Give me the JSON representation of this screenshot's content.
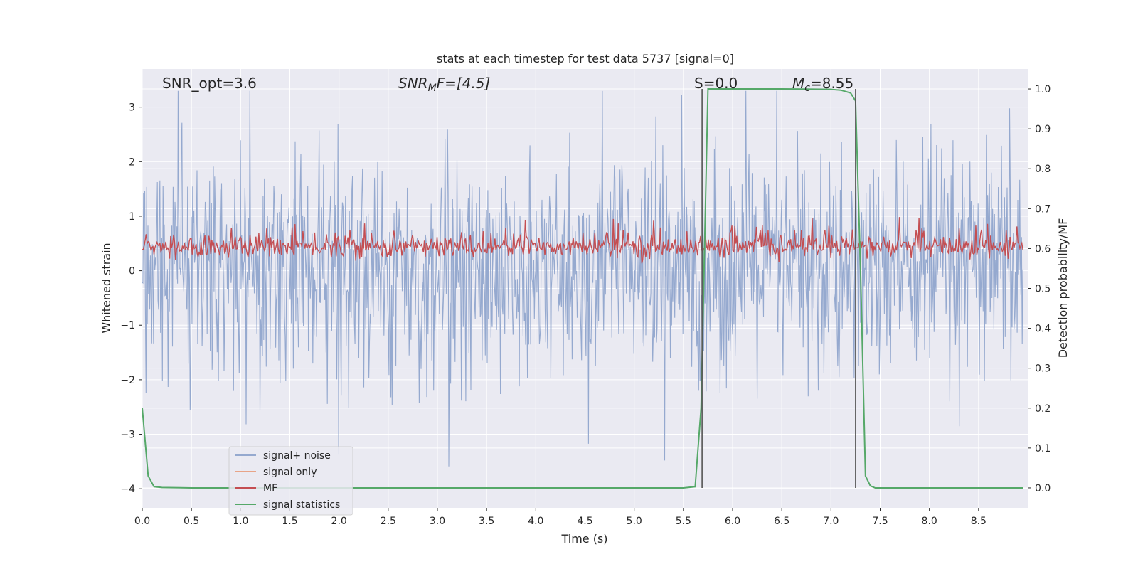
{
  "chart_data": {
    "type": "line",
    "title": "stats at each timestep for test data 5737 [signal=0]",
    "xlabel": "Time (s)",
    "ylabel_left": "Whitened strain",
    "ylabel_right": "Detection probability/MF",
    "xlim": [
      0.0,
      9.0
    ],
    "ylim_left": [
      -4.35,
      3.7
    ],
    "ylim_right": [
      -0.05,
      1.05
    ],
    "x_ticks": [
      "0.0",
      "0.5",
      "1.0",
      "1.5",
      "2.0",
      "2.5",
      "3.0",
      "3.5",
      "4.0",
      "4.5",
      "5.0",
      "5.5",
      "6.0",
      "6.5",
      "7.0",
      "7.5",
      "8.0",
      "8.5"
    ],
    "x_tick_values": [
      0.0,
      0.5,
      1.0,
      1.5,
      2.0,
      2.5,
      3.0,
      3.5,
      4.0,
      4.5,
      5.0,
      5.5,
      6.0,
      6.5,
      7.0,
      7.5,
      8.0,
      8.5
    ],
    "y_left_ticks": [
      "−4",
      "−3",
      "−2",
      "−1",
      "0",
      "1",
      "2",
      "3"
    ],
    "y_left_tick_values": [
      -4,
      -3,
      -2,
      -1,
      0,
      1,
      2,
      3
    ],
    "y_right_ticks": [
      "0.0",
      "0.1",
      "0.2",
      "0.3",
      "0.4",
      "0.5",
      "0.6",
      "0.7",
      "0.8",
      "0.9",
      "1.0"
    ],
    "y_right_tick_values": [
      0.0,
      0.1,
      0.2,
      0.3,
      0.4,
      0.5,
      0.6,
      0.7,
      0.8,
      0.9,
      1.0
    ],
    "annotations": {
      "snr_opt": "SNR_opt=3.6",
      "snr_mf_prefix": "SNR",
      "snr_mf_sub": "M",
      "snr_mf_suffix": "F=[4.5]",
      "s_label": "S=0.0",
      "mc_prefix": "M",
      "mc_sub": "c",
      "mc_suffix": "=8.55"
    },
    "vertical_lines_x": [
      5.69,
      7.25
    ],
    "series": [
      {
        "name": "signal+ noise",
        "color": "#95a9cf",
        "axis": "left",
        "kind": "noise",
        "approx_range": [
          -4.0,
          3.3
        ]
      },
      {
        "name": "signal only",
        "color": "#e8a488",
        "axis": "left",
        "kind": "flat",
        "values": []
      },
      {
        "name": "MF",
        "color": "#c44e52",
        "axis": "right",
        "kind": "mf",
        "approx_range": [
          0.55,
          0.68
        ]
      },
      {
        "name": "signal statistics",
        "color": "#55a868",
        "axis": "right",
        "kind": "line",
        "x": [
          0.0,
          0.06,
          0.12,
          0.2,
          0.5,
          1.0,
          2.0,
          3.0,
          4.0,
          5.0,
          5.5,
          5.62,
          5.68,
          5.75,
          6.0,
          6.5,
          7.0,
          7.1,
          7.2,
          7.25,
          7.3,
          7.35,
          7.4,
          7.45,
          8.0,
          8.95
        ],
        "y": [
          0.2,
          0.03,
          0.003,
          0.001,
          0.0,
          0.0,
          0.0,
          0.0,
          0.0,
          0.0,
          0.0,
          0.003,
          0.2,
          1.0,
          1.0,
          1.0,
          0.999,
          0.997,
          0.99,
          0.97,
          0.55,
          0.03,
          0.005,
          0.0,
          0.0,
          0.0
        ]
      }
    ],
    "legend": {
      "position": "bottom-left",
      "entries": [
        "signal+ noise",
        "signal only",
        "MF",
        "signal statistics"
      ]
    }
  },
  "colors": {
    "plot_bg": "#eaeaf2",
    "grid": "#ffffff",
    "noise": "#95a9cf",
    "signal_only": "#e8a488",
    "mf": "#c44e52",
    "stat": "#55a868",
    "vline": "#555555"
  }
}
